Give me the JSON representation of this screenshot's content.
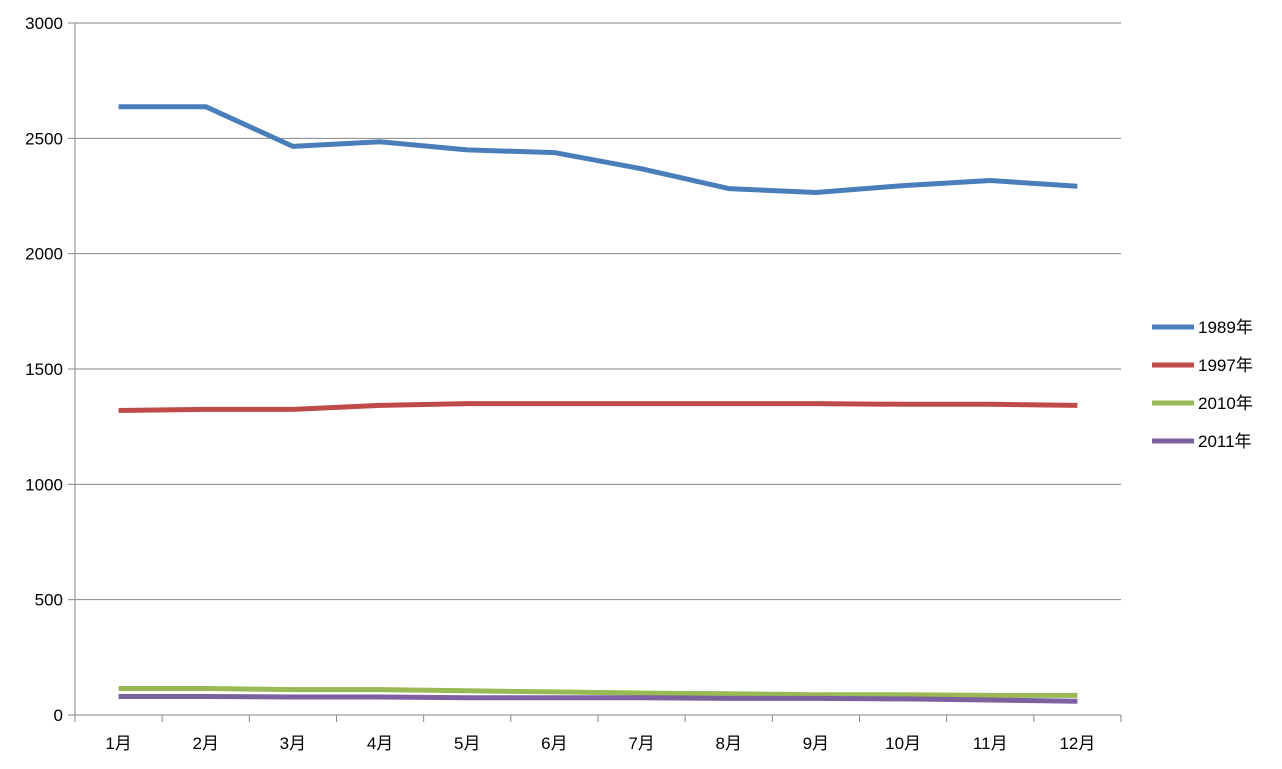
{
  "chart_data": {
    "type": "line",
    "title": "",
    "xlabel": "",
    "ylabel": "",
    "categories": [
      "1月",
      "2月",
      "3月",
      "4月",
      "5月",
      "6月",
      "7月",
      "8月",
      "9月",
      "10月",
      "11月",
      "12月"
    ],
    "ylim": [
      0,
      3000
    ],
    "yticks": [
      0,
      500,
      1000,
      1500,
      2000,
      2500,
      3000
    ],
    "grid": true,
    "legend_position": "right",
    "series": [
      {
        "name": "1989年",
        "color": "#4A7EBB",
        "values": [
          2637,
          2637,
          2465,
          2485,
          2450,
          2438,
          2368,
          2282,
          2265,
          2295,
          2317,
          2292
        ]
      },
      {
        "name": "1997年",
        "color": "#BE4B48",
        "values": [
          1320,
          1325,
          1325,
          1342,
          1350,
          1350,
          1350,
          1350,
          1350,
          1347,
          1347,
          1342
        ]
      },
      {
        "name": "2010年",
        "color": "#98B954",
        "values": [
          115,
          115,
          110,
          110,
          105,
          100,
          95,
          92,
          88,
          88,
          85,
          85
        ]
      },
      {
        "name": "2011年",
        "color": "#7D60A0",
        "values": [
          80,
          80,
          78,
          78,
          75,
          75,
          75,
          72,
          72,
          70,
          65,
          60
        ]
      }
    ]
  }
}
